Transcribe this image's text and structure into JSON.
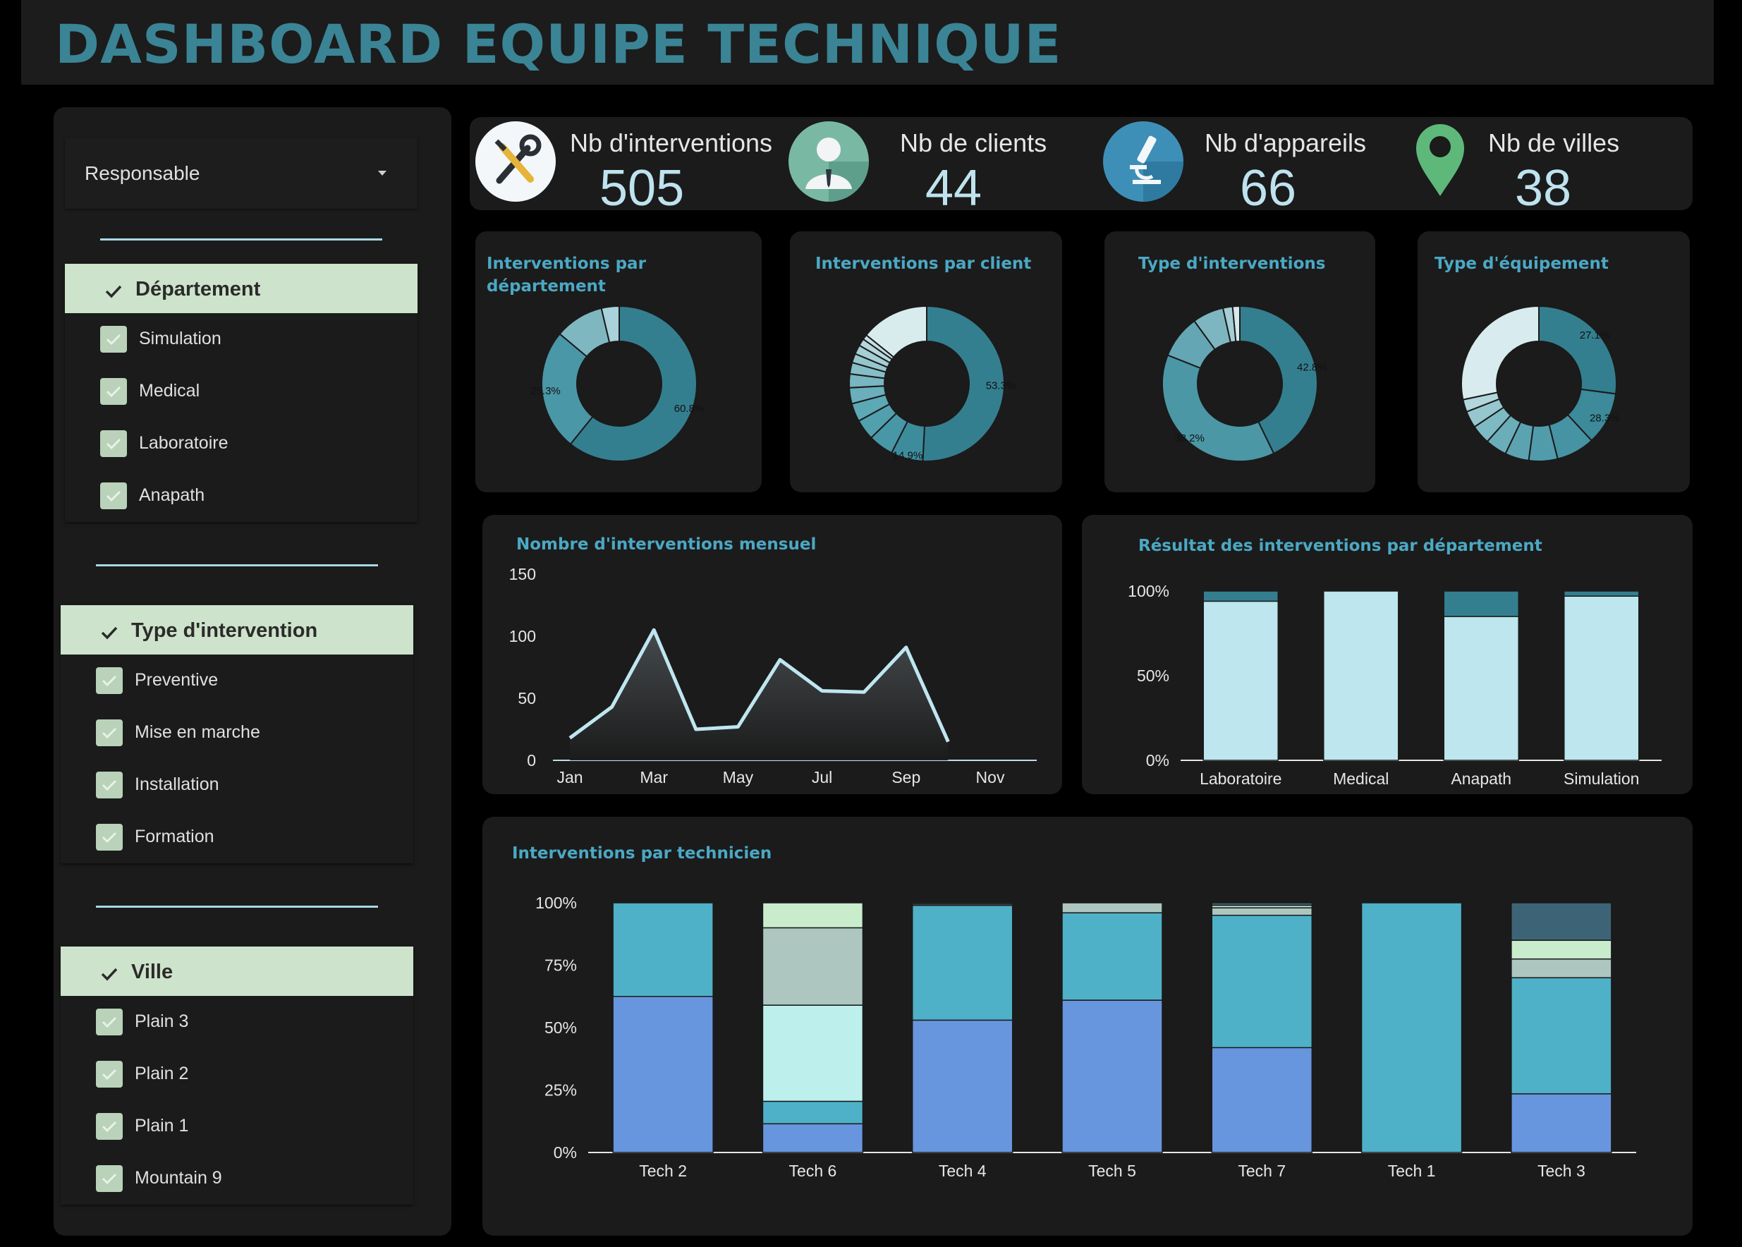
{
  "header": {
    "title": "DASHBOARD EQUIPE TECHNIQUE"
  },
  "sidebar": {
    "dropdown": {
      "label": "Responsable",
      "icon": "caret-down-icon"
    },
    "filters": [
      {
        "title": "Département",
        "items": [
          "Simulation",
          "Medical",
          "Laboratoire",
          "Anapath"
        ]
      },
      {
        "title": "Type d'intervention",
        "items": [
          "Preventive",
          "Mise en marche",
          "Installation",
          "Formation"
        ]
      },
      {
        "title": "Ville",
        "items": [
          "Plain 3",
          "Plain 2",
          "Plain 1",
          "Mountain 9"
        ]
      }
    ]
  },
  "kpis": [
    {
      "label": "Nb d'interventions",
      "value": "505",
      "icon": "tools-icon"
    },
    {
      "label": "Nb de clients",
      "value": "44",
      "icon": "client-icon"
    },
    {
      "label": "Nb d'appareils",
      "value": "66",
      "icon": "microscope-icon"
    },
    {
      "label": "Nb de villes",
      "value": "38",
      "icon": "map-pin-icon"
    }
  ],
  "colors": {
    "accent": "#4ba8c4",
    "title": "#3a8495",
    "donut_palette": [
      "#347f8f",
      "#3f8e9f",
      "#57a3b2",
      "#7cb8c4",
      "#a9d3dc",
      "#d6eaee"
    ],
    "stack_palette": [
      "#6896de",
      "#4eb1c7",
      "#bdf0ec",
      "#adc6c0",
      "#c9eccd",
      "#3d6476"
    ]
  },
  "chart_data": [
    {
      "type": "pie",
      "title": "Interventions par département",
      "slices": [
        60.8,
        25.3,
        10.2,
        3.7
      ],
      "labels_shown": [
        "60.8%",
        "25.3%"
      ]
    },
    {
      "type": "pie",
      "title": "Interventions par client",
      "slices": [
        53.3,
        7,
        5.5,
        4.5,
        4,
        3.5,
        3,
        2.5,
        2,
        2,
        1.6,
        1.1,
        14.9
      ],
      "labels_shown": [
        "53.3%",
        "14.9%"
      ]
    },
    {
      "type": "pie",
      "title": "Type d'interventions",
      "slices": [
        42.8,
        38.2,
        9,
        6.5,
        2,
        1.5
      ],
      "labels_shown": [
        "42.8%",
        "38.2%"
      ]
    },
    {
      "type": "pie",
      "title": "Type d'équipement",
      "slices": [
        27.1,
        11,
        8,
        6,
        5,
        4.5,
        4,
        3.5,
        2.6,
        28.3
      ],
      "labels_shown": [
        "27.1%",
        "28.3%"
      ]
    },
    {
      "type": "area",
      "title": "Nombre d'interventions mensuel",
      "x": [
        "Jan",
        "Feb",
        "Mar",
        "Apr",
        "May",
        "Jun",
        "Jul",
        "Aug",
        "Sep",
        "Oct"
      ],
      "values": [
        18,
        43,
        105,
        25,
        27,
        81,
        56,
        55,
        91,
        15
      ],
      "x_ticks": [
        "Jan",
        "Mar",
        "May",
        "Jul",
        "Sep",
        "Nov"
      ],
      "y_ticks": [
        "0",
        "50",
        "100",
        "150"
      ],
      "ylim": [
        0,
        150
      ]
    },
    {
      "type": "bar",
      "title": "Résultat des interventions par département",
      "categories": [
        "Laboratoire",
        "Medical",
        "Anapath",
        "Simulation"
      ],
      "series": [
        {
          "values": [
            94,
            100,
            85,
            97
          ]
        },
        {
          "values": [
            6,
            0,
            15,
            3
          ]
        }
      ],
      "y_ticks": [
        "0%",
        "50%",
        "100%"
      ],
      "ylim": [
        0,
        100
      ]
    },
    {
      "type": "bar",
      "title": "Interventions par technicien",
      "categories": [
        "Tech 2",
        "Tech 6",
        "Tech 4",
        "Tech 5",
        "Tech 7",
        "Tech 1",
        "Tech 3"
      ],
      "series": [
        {
          "values": [
            62.5,
            11.5,
            53,
            61,
            42,
            0,
            23.5
          ]
        },
        {
          "values": [
            37.5,
            9,
            46,
            35,
            53,
            100,
            46.5
          ]
        },
        {
          "values": [
            0,
            38.5,
            0,
            0,
            0,
            0,
            0
          ]
        },
        {
          "values": [
            0,
            31,
            0.5,
            4,
            3,
            0,
            7.5
          ]
        },
        {
          "values": [
            0,
            10,
            0,
            0,
            1,
            0,
            7.5
          ]
        },
        {
          "values": [
            0,
            0,
            0.5,
            0,
            1,
            0,
            15
          ]
        }
      ],
      "y_ticks": [
        "0%",
        "25%",
        "50%",
        "75%",
        "100%"
      ],
      "ylim": [
        0,
        100
      ]
    }
  ]
}
